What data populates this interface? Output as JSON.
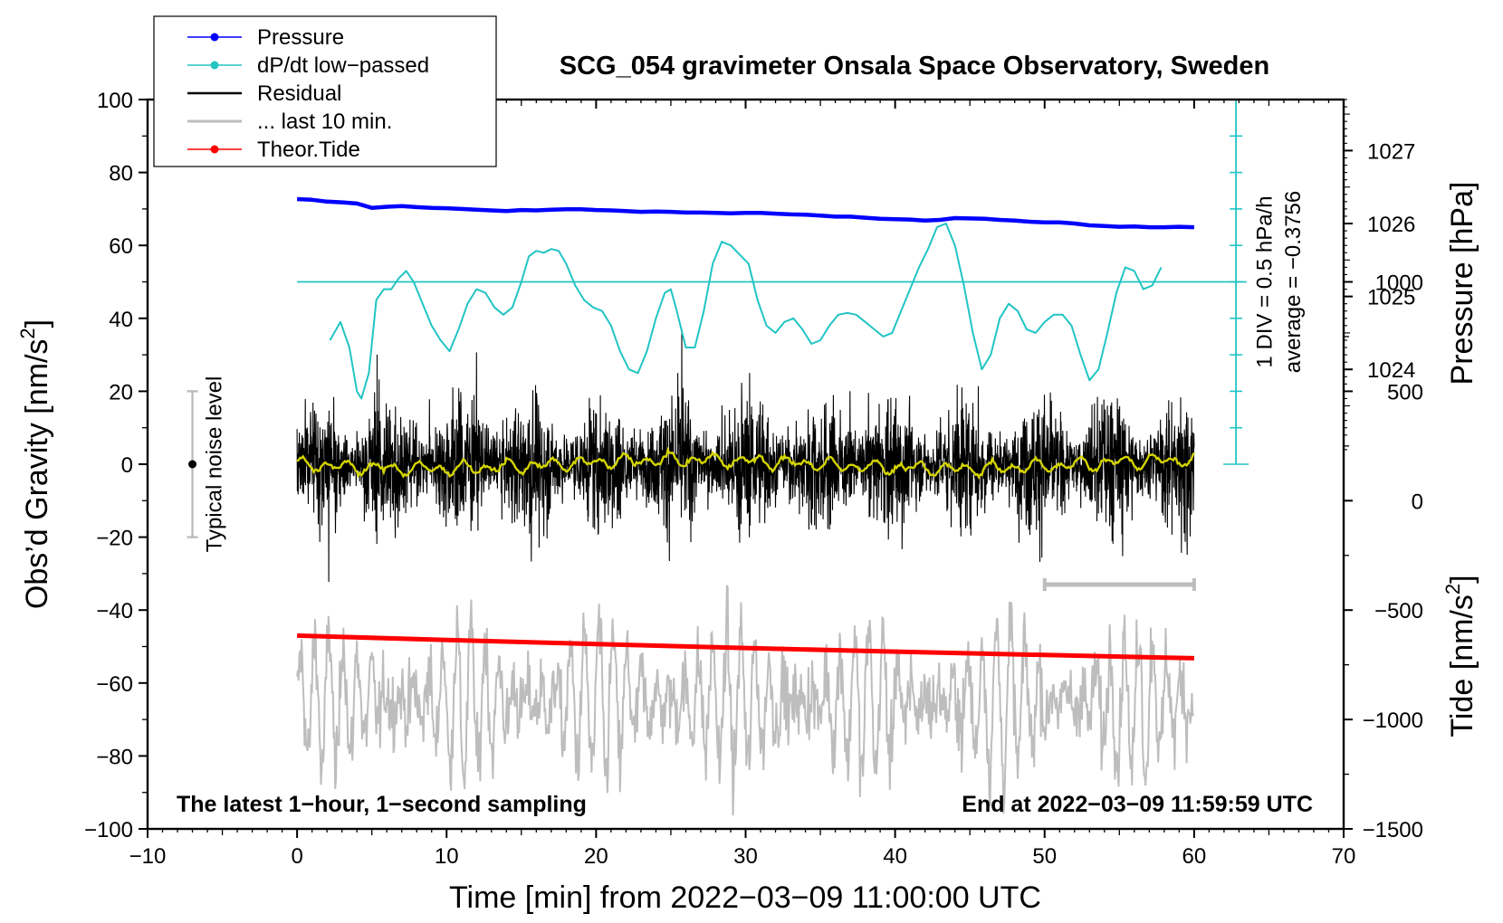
{
  "chart_data": {
    "type": "line",
    "title": "SCG_054 gravimeter Onsala Space Observatory, Sweden",
    "xlabel": "Time [min] from 2022−03−09 11:00:00 UTC",
    "ylabel_left": "Obs’d Gravity [nm/s",
    "ylabel_left_sup": "2",
    "ylabel_left_end": "]",
    "ylabel_pressure": "Pressure [hPa]",
    "ylabel_tide": "Tide [nm/s",
    "ylabel_tide_sup": "2",
    "ylabel_tide_end": "]",
    "xlim": [
      -10,
      70
    ],
    "ylim": [
      -100,
      100
    ],
    "x_ticks": [
      "−10",
      "0",
      "10",
      "20",
      "30",
      "40",
      "50",
      "60",
      "70"
    ],
    "y_ticks": [
      "−100",
      "−80",
      "−60",
      "−40",
      "−20",
      "0",
      "20",
      "40",
      "60",
      "80",
      "100"
    ],
    "pressure_ticks": [
      "1027",
      "1026",
      "1025",
      "1024"
    ],
    "pressure_tick_values": [
      1027,
      1026,
      1025,
      1024
    ],
    "pressure_axis_map": {
      "hPa_at_0": 1022.7,
      "hPa_per_unit": 0.05
    },
    "tide_ticks": [
      "1000",
      "500",
      "0",
      "−500",
      "−1000",
      "−1500"
    ],
    "tide_tick_values": [
      1000,
      500,
      0,
      -500,
      -1000,
      -1500
    ],
    "tide_axis_map": {
      "tide_at_minus100": -1500,
      "tide_per_unit": 16.667
    },
    "legend": {
      "position": "top-left",
      "entries": [
        {
          "label": "Pressure",
          "color": "#0000ff",
          "marker": true
        },
        {
          "label": "dP/dt low−passed",
          "color": "#22c4c4",
          "marker": true
        },
        {
          "label": "Residual",
          "color": "#000000",
          "marker": false
        },
        {
          "label": "... last 10 min.",
          "color": "#bdbdbd",
          "marker": false
        },
        {
          "label": "Theor.Tide",
          "color": "#ff0000",
          "marker": true
        }
      ]
    },
    "annotations": {
      "noise_label": "Typical noise level",
      "noise_range": [
        -20,
        20
      ],
      "noise_x": -7,
      "div_label": "1 DIV = 0.5 hPa/h",
      "avg_label": "average = −0.3756",
      "bottom_left": "The latest 1−hour, 1−second sampling",
      "bottom_right": "End at 2022−03−09 11:59:59 UTC",
      "last10_bar": [
        50,
        60
      ],
      "last10_y": -33
    },
    "series": [
      {
        "name": "Pressure",
        "color": "#0000ff",
        "x": [
          0,
          1,
          2,
          3,
          4,
          5,
          6,
          7,
          8,
          9,
          10,
          11,
          12,
          13,
          14,
          15,
          16,
          17,
          18,
          19,
          20,
          21,
          22,
          23,
          24,
          25,
          26,
          27,
          28,
          29,
          30,
          31,
          32,
          33,
          34,
          35,
          36,
          37,
          38,
          39,
          40,
          41,
          42,
          43,
          44,
          45,
          46,
          47,
          48,
          49,
          50,
          51,
          52,
          53,
          54,
          55,
          56,
          57,
          58,
          59,
          60
        ],
        "y": [
          72.7,
          72.5,
          72.0,
          71.8,
          71.5,
          70.3,
          70.6,
          70.8,
          70.5,
          70.3,
          70.2,
          70.0,
          69.8,
          69.6,
          69.4,
          69.7,
          69.6,
          69.8,
          69.9,
          69.9,
          69.7,
          69.6,
          69.4,
          69.2,
          69.3,
          69.2,
          69.0,
          69.0,
          68.9,
          68.8,
          68.9,
          68.9,
          68.7,
          68.5,
          68.4,
          68.2,
          67.9,
          67.9,
          67.6,
          67.3,
          67.2,
          67.1,
          66.8,
          67.0,
          67.5,
          67.4,
          67.3,
          67.0,
          66.8,
          66.5,
          66.3,
          66.3,
          66.0,
          65.5,
          65.3,
          65.1,
          65.2,
          65.0,
          65.0,
          65.1,
          65.0
        ]
      },
      {
        "name": "dP/dt low-passed",
        "color": "#22c4c4",
        "x": [
          2.2,
          2.9,
          3.5,
          4.0,
          4.3,
          4.8,
          5.3,
          5.8,
          6.3,
          6.8,
          7.3,
          7.8,
          8.4,
          9.0,
          9.6,
          10.2,
          10.8,
          11.4,
          12.0,
          12.6,
          13.2,
          13.8,
          14.4,
          15.0,
          15.5,
          16.0,
          16.5,
          17.0,
          17.5,
          18.0,
          18.6,
          19.2,
          19.8,
          20.4,
          21.0,
          21.6,
          22.2,
          22.8,
          23.4,
          24.0,
          24.6,
          25.0,
          25.4,
          26.0,
          26.6,
          27.2,
          27.8,
          28.4,
          29.0,
          29.6,
          30.2,
          30.8,
          31.4,
          32.0,
          32.6,
          33.2,
          33.8,
          34.4,
          35.0,
          35.6,
          36.2,
          36.8,
          37.4,
          38.0,
          38.6,
          39.2,
          39.8,
          40.4,
          41.0,
          41.6,
          42.2,
          42.8,
          43.4,
          44.0,
          44.6,
          45.2,
          45.8,
          46.4,
          47.0,
          47.6,
          48.2,
          48.8,
          49.4,
          50.0,
          50.6,
          51.2,
          51.8,
          52.4,
          53.0,
          53.6,
          54.2,
          54.8,
          55.4,
          56.0,
          56.6,
          57.2,
          57.8
        ],
        "y": [
          34,
          39,
          32,
          20,
          18,
          25,
          45,
          48,
          48,
          51,
          53,
          50,
          44,
          38,
          34,
          31,
          37,
          44,
          48,
          47,
          43,
          41,
          43,
          50,
          57,
          58.5,
          58,
          59,
          58.5,
          55,
          49,
          45,
          43,
          42,
          38,
          31,
          26,
          25,
          31,
          40,
          47,
          48,
          42,
          32,
          32,
          42,
          55,
          61,
          60,
          57.5,
          55,
          45,
          38,
          36,
          39,
          40,
          37,
          33,
          34,
          38,
          41,
          41.5,
          41,
          39,
          37,
          35,
          36,
          42,
          48,
          54,
          59,
          65,
          66,
          60,
          49,
          36,
          26,
          30,
          40,
          44,
          42,
          37,
          36,
          39,
          41,
          41,
          38,
          30,
          23,
          26,
          36,
          47,
          54,
          53,
          48,
          49,
          54
        ]
      },
      {
        "name": "Theor.Tide",
        "color": "#ff0000",
        "x": [
          0,
          10,
          20,
          30,
          40,
          50,
          60
        ],
        "y": [
          -47,
          -48.2,
          -49.3,
          -50.4,
          -51.4,
          -52.3,
          -53.2
        ]
      }
    ]
  }
}
